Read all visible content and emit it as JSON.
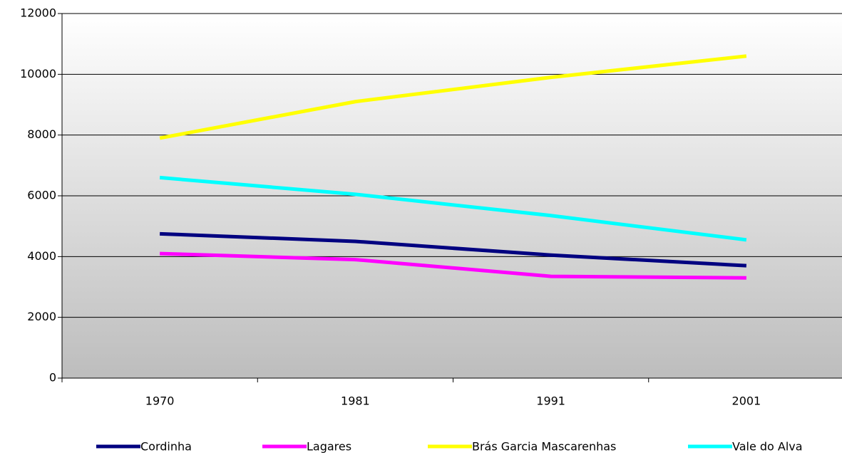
{
  "chart_data": {
    "type": "line",
    "categories": [
      "1970",
      "1981",
      "1991",
      "2001"
    ],
    "series": [
      {
        "name": "Cordinha",
        "color": "#000080",
        "values": [
          4750,
          4500,
          4050,
          3700
        ]
      },
      {
        "name": "Lagares",
        "color": "#ff00ff",
        "values": [
          4100,
          3900,
          3350,
          3300
        ]
      },
      {
        "name": "Brás Garcia Mascarenhas",
        "color": "#ffff00",
        "values": [
          7900,
          9100,
          9900,
          10600
        ]
      },
      {
        "name": "Vale do Alva",
        "color": "#00ffff",
        "values": [
          6600,
          6050,
          5350,
          4550
        ]
      }
    ],
    "ylim": [
      0,
      12000
    ],
    "yticks": [
      0,
      2000,
      4000,
      6000,
      8000,
      10000,
      12000
    ],
    "grid": true,
    "legend": "bottom"
  }
}
